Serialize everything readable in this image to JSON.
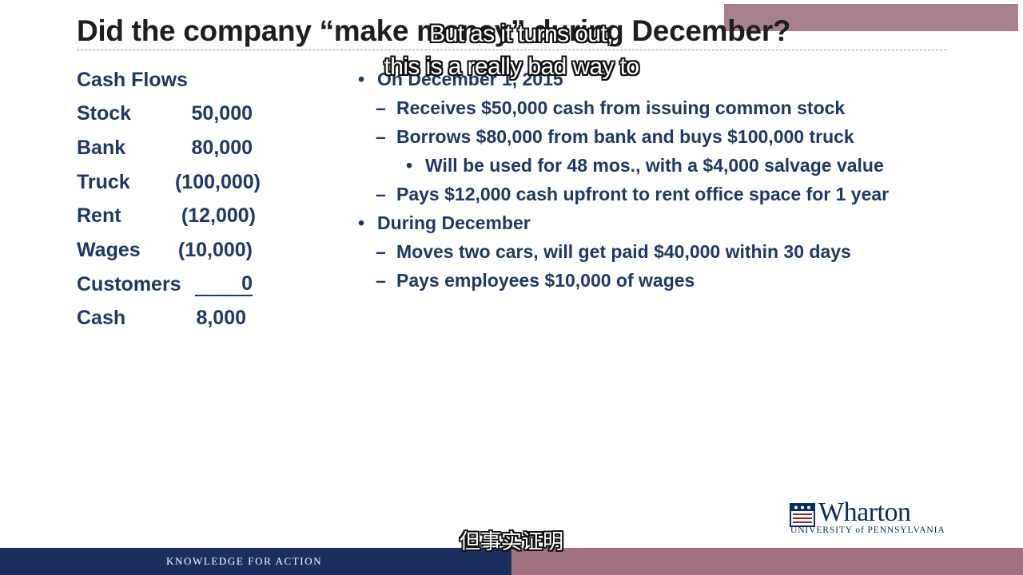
{
  "slide": {
    "title": "Did the company “make money” during December?"
  },
  "cash_flows": {
    "header": "Cash Flows",
    "rows": [
      {
        "label": "Stock",
        "value": "50,000"
      },
      {
        "label": "Bank",
        "value": "80,000"
      },
      {
        "label": "Truck",
        "value": "(100,000)"
      },
      {
        "label": "Rent",
        "value": "(12,000)"
      },
      {
        "label": "Wages",
        "value": "(10,000)"
      },
      {
        "label": "Customers",
        "value": "0"
      },
      {
        "label": "Cash",
        "value": "8,000"
      }
    ]
  },
  "bullets": [
    {
      "level": 1,
      "marker": "•",
      "text": "On December 1, 2015"
    },
    {
      "level": 2,
      "marker": "–",
      "text": "Receives $50,000 cash from issuing common stock"
    },
    {
      "level": 2,
      "marker": "–",
      "text": "Borrows $80,000 from bank and buys $100,000 truck"
    },
    {
      "level": 3,
      "marker": "•",
      "text": "Will be used for 48 mos., with a $4,000 salvage value"
    },
    {
      "level": 2,
      "marker": "–",
      "text": "Pays $12,000 cash upfront to rent office space for 1 year"
    },
    {
      "level": 1,
      "marker": "•",
      "text": "During December"
    },
    {
      "level": 2,
      "marker": "–",
      "text": "Moves two cars, will get paid $40,000 within 30 days"
    },
    {
      "level": 2,
      "marker": "–",
      "text": "Pays employees $10,000 of wages"
    }
  ],
  "subtitles": {
    "line1": "But as it turns out,",
    "line2": "this is a really bad way to",
    "chinese": "但事实证明"
  },
  "logo": {
    "name": "Wharton",
    "university": "UNIVERSITY of PENNSYLVANIA"
  },
  "footer": {
    "tagline": "KNOWLEDGE FOR ACTION"
  },
  "colors": {
    "text_navy": "#1f3864",
    "footer_navy": "#1a2f5e",
    "footer_mauve": "#a07282"
  }
}
